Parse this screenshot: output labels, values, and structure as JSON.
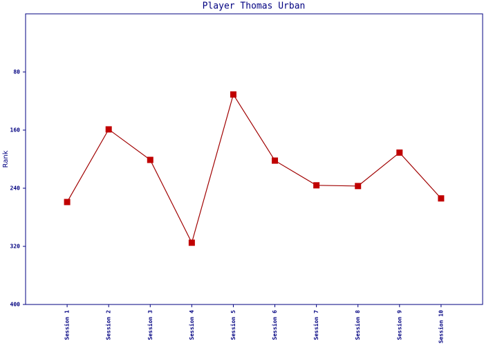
{
  "chart_data": {
    "type": "line",
    "title": "Player Thomas Urban",
    "ylabel": "Rank",
    "categories": [
      "Session 1",
      "Session 2",
      "Session 3",
      "Session 4",
      "Session 5",
      "Session 6",
      "Session 7",
      "Session 8",
      "Session 9",
      "Session 10"
    ],
    "series": [
      {
        "name": "Rank",
        "color": "#c00000",
        "values": [
          259,
          159,
          201,
          315,
          111,
          202,
          236,
          237,
          191,
          254
        ]
      }
    ],
    "ylim": [
      0,
      400
    ],
    "yticks": [
      80,
      160,
      240,
      320,
      400
    ],
    "y_inverted": true,
    "grid": false
  }
}
